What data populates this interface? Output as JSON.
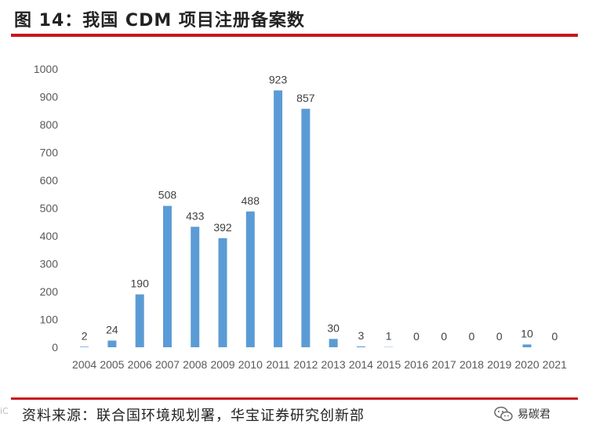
{
  "title": "图 14：我国 CDM 项目注册备案数",
  "source": "资料来源：联合国环境规划署，华宝证券研究创新部",
  "watermark": "易碳君",
  "watermark_left": "iC",
  "colors": {
    "bar": "#5b9bd5",
    "rule": "#c8161d"
  },
  "chart_data": {
    "type": "bar",
    "categories": [
      "2004",
      "2005",
      "2006",
      "2007",
      "2008",
      "2009",
      "2010",
      "2011",
      "2012",
      "2013",
      "2014",
      "2015",
      "2016",
      "2017",
      "2018",
      "2019",
      "2020",
      "2021"
    ],
    "values": [
      2,
      24,
      190,
      508,
      433,
      392,
      488,
      923,
      857,
      30,
      3,
      1,
      0,
      0,
      0,
      0,
      10,
      0
    ],
    "data_labels": [
      "2",
      "24",
      "190",
      "508",
      "433",
      "392",
      "488",
      "923",
      "857",
      "30",
      "3",
      "1",
      "0",
      "0",
      "0",
      "0",
      "10",
      "0"
    ],
    "ylim": [
      0,
      1000
    ],
    "yticks": [
      "0",
      "100",
      "200",
      "300",
      "400",
      "500",
      "600",
      "700",
      "800",
      "900",
      "1000"
    ],
    "grid": false,
    "legend": "none"
  }
}
